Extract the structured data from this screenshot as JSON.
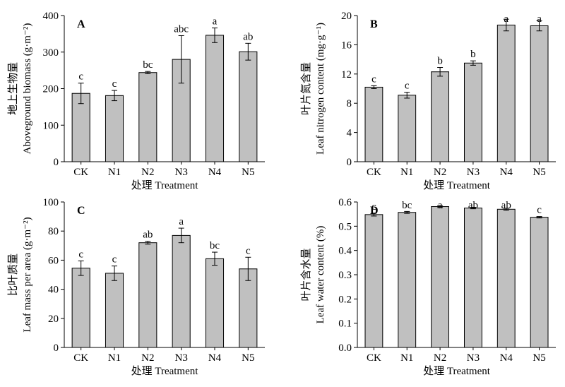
{
  "chart_data": [
    {
      "type": "bar",
      "panel_label": "A",
      "categories": [
        "CK",
        "N1",
        "N2",
        "N3",
        "N4",
        "N5"
      ],
      "values": [
        187,
        181,
        244,
        280,
        346,
        301
      ],
      "errors": [
        28,
        14,
        3,
        65,
        20,
        23
      ],
      "letters": [
        "c",
        "c",
        "bc",
        "abc",
        "a",
        "ab"
      ],
      "xlabel": "处理  Treatment",
      "ylabel": "地上生物量",
      "ylabel2": "Aboveground biomass (g·m⁻²)",
      "ylim": [
        0,
        400
      ],
      "yticks": [
        0,
        100,
        200,
        300,
        400
      ],
      "yticklabels": [
        "0",
        "100",
        "200",
        "300",
        "400"
      ],
      "grid": false
    },
    {
      "type": "bar",
      "panel_label": "B",
      "categories": [
        "CK",
        "N1",
        "N2",
        "N3",
        "N4",
        "N5"
      ],
      "values": [
        10.2,
        9.1,
        12.3,
        13.5,
        18.7,
        18.6
      ],
      "errors": [
        0.2,
        0.4,
        0.6,
        0.3,
        0.8,
        0.7
      ],
      "letters": [
        "c",
        "c",
        "b",
        "b",
        "a",
        "a"
      ],
      "xlabel": "处理  Treatment",
      "ylabel": "叶片氮含量",
      "ylabel2": "Leaf nitrogen content (mg·g⁻¹)",
      "ylim": [
        0,
        20
      ],
      "yticks": [
        0,
        4,
        8,
        12,
        16,
        20
      ],
      "yticklabels": [
        "0",
        "4",
        "8",
        "12",
        "16",
        "20"
      ],
      "grid": false
    },
    {
      "type": "bar",
      "panel_label": "C",
      "categories": [
        "CK",
        "N1",
        "N2",
        "N3",
        "N4",
        "N5"
      ],
      "values": [
        54.5,
        51,
        72,
        77,
        61,
        54
      ],
      "errors": [
        5,
        5,
        1,
        5,
        4.5,
        8
      ],
      "letters": [
        "c",
        "c",
        "ab",
        "a",
        "bc",
        "c"
      ],
      "xlabel": "处理  Treatment",
      "ylabel": "比叶质量",
      "ylabel2": "Leaf mass per area (g·m⁻²)",
      "ylim": [
        0,
        100
      ],
      "yticks": [
        0,
        20,
        40,
        60,
        80,
        100
      ],
      "yticklabels": [
        "0",
        "20",
        "40",
        "60",
        "80",
        "100"
      ],
      "grid": false
    },
    {
      "type": "bar",
      "panel_label": "D",
      "categories": [
        "CK",
        "N1",
        "N2",
        "N3",
        "N4",
        "N5"
      ],
      "values": [
        0.548,
        0.557,
        0.581,
        0.575,
        0.57,
        0.537
      ],
      "errors": [
        0.006,
        0.004,
        0.004,
        0.003,
        0.004,
        0.003
      ],
      "letters": [
        "c",
        "bc",
        "a",
        "ab",
        "ab",
        "c"
      ],
      "xlabel": "处理  Treatment",
      "ylabel": "叶片含水量",
      "ylabel2": "Leaf water content (%)",
      "ylim": [
        0,
        0.6
      ],
      "yticks": [
        0,
        0.1,
        0.2,
        0.3,
        0.4,
        0.5,
        0.6
      ],
      "yticklabels": [
        "0.0",
        "0.1",
        "0.2",
        "0.3",
        "0.4",
        "0.5",
        "0.6"
      ],
      "grid": false
    }
  ]
}
